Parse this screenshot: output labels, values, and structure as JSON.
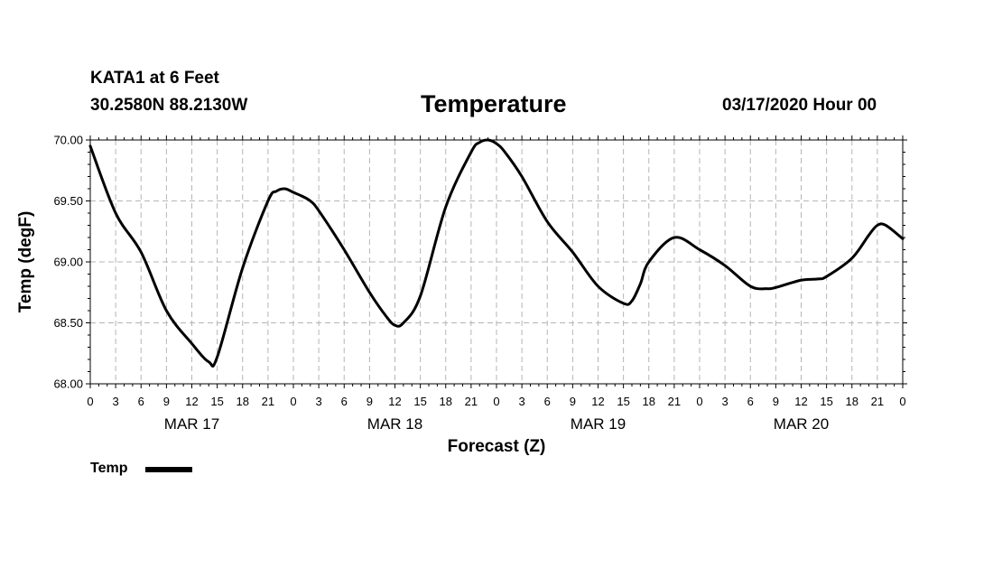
{
  "header": {
    "station": "KATA1 at 6 Feet",
    "coords": "30.2580N 88.2130W",
    "run": "03/17/2020 Hour 00"
  },
  "chart_data": {
    "type": "line",
    "title": "Temperature",
    "xlabel": "Forecast (Z)",
    "ylabel": "Temp (degF)",
    "ylim": [
      68.0,
      70.0
    ],
    "yticks": [
      "68.00",
      "68.50",
      "69.00",
      "69.50",
      "70.00"
    ],
    "x_unit": "hours",
    "xlim": [
      0,
      96
    ],
    "xtick_labels": [
      "0",
      "3",
      "6",
      "9",
      "12",
      "15",
      "18",
      "21",
      "0",
      "3",
      "6",
      "9",
      "12",
      "15",
      "18",
      "21",
      "0",
      "3",
      "6",
      "9",
      "12",
      "15",
      "18",
      "21",
      "0",
      "3",
      "6",
      "9",
      "12",
      "15",
      "18",
      "21",
      "0"
    ],
    "day_labels": [
      {
        "label": "MAR 17",
        "hour": 12
      },
      {
        "label": "MAR 18",
        "hour": 36
      },
      {
        "label": "MAR 19",
        "hour": 60
      },
      {
        "label": "MAR 20",
        "hour": 84
      }
    ],
    "grid": true,
    "legend_position": "bottom-left",
    "series": [
      {
        "name": "Temp",
        "color": "#000000",
        "x": [
          0,
          3,
          6,
          9,
          12,
          14,
          15,
          18,
          21,
          22,
          23,
          24,
          25,
          26,
          27,
          30,
          33,
          35,
          36,
          37,
          39,
          42,
          45,
          46,
          47,
          48,
          49,
          51,
          54,
          57,
          60,
          63,
          64,
          65,
          66,
          69,
          72,
          75,
          78,
          80,
          81,
          84,
          86,
          87,
          90,
          92,
          93,
          94,
          96
        ],
        "values": [
          69.95,
          69.4,
          69.08,
          68.6,
          68.33,
          68.18,
          68.22,
          68.95,
          69.5,
          69.58,
          69.6,
          69.57,
          69.54,
          69.5,
          69.42,
          69.1,
          68.75,
          68.55,
          68.48,
          68.5,
          68.72,
          69.45,
          69.9,
          69.98,
          70.0,
          69.97,
          69.9,
          69.7,
          69.33,
          69.08,
          68.8,
          68.66,
          68.68,
          68.82,
          69.0,
          69.2,
          69.1,
          68.97,
          68.8,
          68.78,
          68.79,
          68.85,
          68.86,
          68.88,
          69.03,
          69.22,
          69.3,
          69.3,
          69.19
        ]
      }
    ]
  }
}
